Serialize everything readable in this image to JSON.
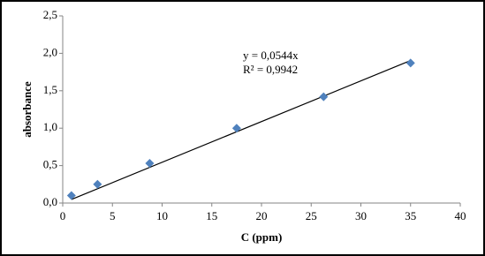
{
  "chart_data": {
    "type": "scatter",
    "x_label": "C (ppm)",
    "y_label": "absorbance",
    "series": [
      {
        "color": "#4f81bd",
        "x": [
          0.875,
          3.5,
          8.75,
          17.5,
          26.25,
          35
        ],
        "values": [
          0.1,
          0.25,
          0.53,
          1.0,
          1.42,
          1.87
        ]
      }
    ],
    "trendline": {
      "color": "#000000",
      "x": [
        0.875,
        35
      ],
      "values": [
        0.048,
        1.904
      ]
    },
    "annotations": [
      "y = 0,0544x",
      "R² = 0,9942"
    ],
    "xlim": [
      0,
      40
    ],
    "xticks": [
      0,
      5,
      10,
      15,
      20,
      25,
      30,
      35,
      40
    ],
    "ylim": [
      0,
      2.5
    ],
    "yticks": [
      {
        "value": 0,
        "label": "0,0"
      },
      {
        "value": 0.5,
        "label": "0,5"
      },
      {
        "value": 1,
        "label": "1,0"
      },
      {
        "value": 1.5,
        "label": "1,5"
      },
      {
        "value": 2,
        "label": "2,0"
      },
      {
        "value": 2.5,
        "label": "2,5"
      }
    ],
    "grid": false
  }
}
